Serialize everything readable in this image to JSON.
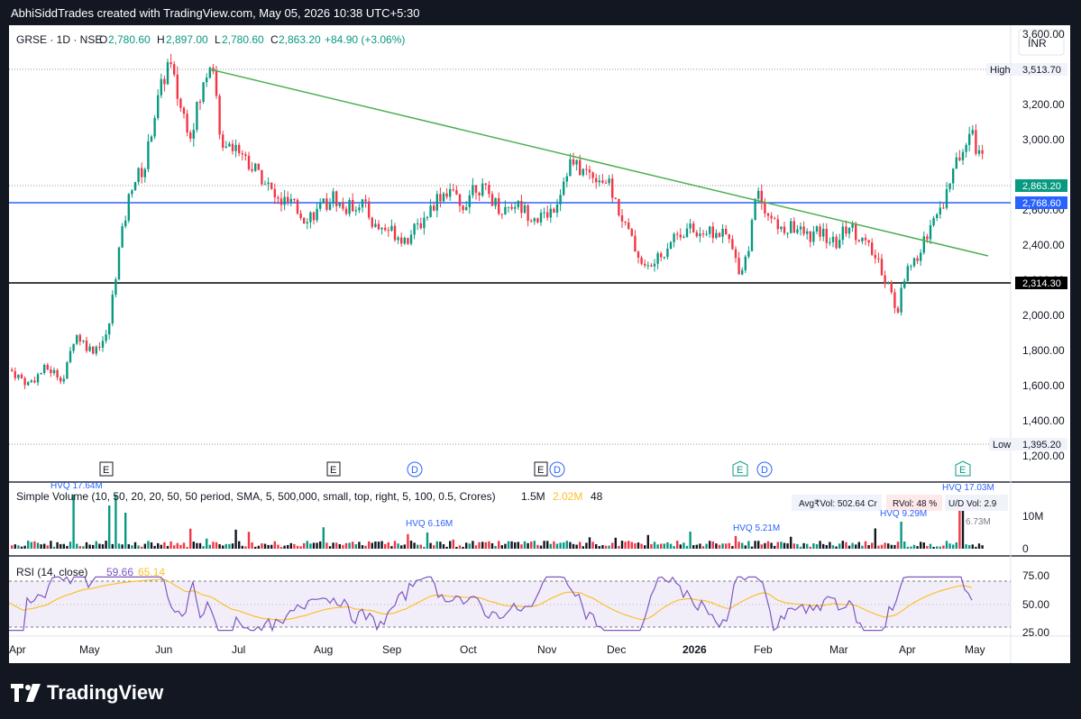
{
  "header": {
    "attribution": "AbhiSiddTrades created with TradingView.com, May 05, 2026 10:38 UTC+5:30"
  },
  "footer": {
    "brand": "TradingView"
  },
  "currency": "INR",
  "ohlc": {
    "symbol": "GRSE · 1D · NSE",
    "o_label": "O",
    "o": "2,780.60",
    "h_label": "H",
    "h": "2,897.00",
    "l_label": "L",
    "l": "2,780.60",
    "c_label": "C",
    "c": "2,863.20",
    "change": "+84.90 (+3.06%)"
  },
  "price_axis": {
    "ticks": [
      "3,600.00",
      "3,400.00",
      "3,200.00",
      "3,000.00",
      "2,800.00",
      "2,600.00",
      "2,400.00",
      "2,200.00",
      "2,000.00",
      "1,800.00",
      "1,600.00",
      "1,400.00",
      "1,200.00"
    ],
    "high_label": "High",
    "high_value": "3,513.70",
    "low_label": "Low",
    "low_value": "1,395.20",
    "last_price": "2,863.20",
    "level_blue": "2,768.60",
    "level_black": "2,314.30"
  },
  "time_axis": [
    "Apr",
    "May",
    "Jun",
    "Jul",
    "Aug",
    "Sep",
    "Oct",
    "Nov",
    "Dec",
    "2026",
    "Feb",
    "Mar",
    "Apr",
    "May"
  ],
  "volume_pane": {
    "title": "Simple Volume (10, 50, 20, 20, 50, 50 period, SMA, 5, 500,000, small, top, right, 5, 100, 0.5, Crores)",
    "v1": "1.5M",
    "v2": "2.02M",
    "v3": "48",
    "avg_label": "Avg₹Vol: 502.64 Cr",
    "rvol_label": "RVol: 48 %",
    "ud_label": "U/D Vol: 2.9",
    "axis": [
      "10M",
      "0"
    ],
    "hvq": [
      "HVQ 17.64M",
      "HVQ 6.16M",
      "HVQ 5.21M",
      "HVQ 9.29M",
      "HVQ 17.03M"
    ],
    "extra": "6.73M"
  },
  "rsi_pane": {
    "title": "RSI (14, close)",
    "value": "59.66",
    "value2": "65.14",
    "axis": [
      "75.00",
      "50.00",
      "25.00"
    ]
  },
  "events": {
    "earnings": "E",
    "dividend": "D"
  },
  "colors": {
    "up": "#089981",
    "down": "#f23645",
    "trend": "#4caf50",
    "level_blue": "#2962ff",
    "level_black": "#000000",
    "rsi": "#7e57c2",
    "rsi_ma": "#fbc02d"
  },
  "chart_data": {
    "type": "candlestick",
    "title": "GRSE · 1D · NSE",
    "x_range": [
      "Apr",
      "May"
    ],
    "y_range": [
      1200,
      3600
    ],
    "y_unit": "INR",
    "series": [
      {
        "name": "GRSE",
        "points": [
          {
            "x": "Apr",
            "close": 1700
          },
          {
            "x": "May",
            "close": 1850
          },
          {
            "x": "Jun",
            "close": 3350
          },
          {
            "x": "Jul",
            "close": 2850
          },
          {
            "x": "Aug",
            "close": 2550
          },
          {
            "x": "Sep",
            "close": 2400
          },
          {
            "x": "Oct",
            "close": 2750
          },
          {
            "x": "Nov",
            "close": 2800
          },
          {
            "x": "Dec",
            "close": 2350
          },
          {
            "x": "2026",
            "close": 2600
          },
          {
            "x": "Feb",
            "close": 2550
          },
          {
            "x": "Mar",
            "close": 2400
          },
          {
            "x": "Apr",
            "close": 2200
          },
          {
            "x": "May",
            "close": 2863.2
          }
        ]
      }
    ],
    "horizontal_levels": [
      2768.6,
      2314.3
    ],
    "high": 3513.7,
    "low": 1395.2,
    "trendline": {
      "from": {
        "x": "Jun",
        "y": 3513.7
      },
      "to": {
        "x": "May",
        "y": 2460
      }
    }
  }
}
